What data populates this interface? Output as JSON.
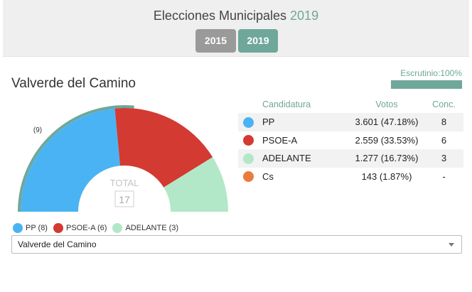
{
  "header": {
    "title_prefix": "Elecciones Municipales",
    "title_year": "2019",
    "years": [
      "2015",
      "2019"
    ]
  },
  "municipality": {
    "name": "Valverde del Camino"
  },
  "escrutinio": {
    "label": "Escrutinio:100%",
    "fraction": 1.0
  },
  "chart": {
    "total_label": "TOTAL",
    "total_value": "17",
    "majority_label": "(9)"
  },
  "chart_data": {
    "type": "pie",
    "shape": "semicircle",
    "total": 17,
    "majority": 9,
    "series": [
      {
        "name": "PP",
        "value": 8,
        "color": "#4ab3f4"
      },
      {
        "name": "PSOE-A",
        "value": 6,
        "color": "#d33a32"
      },
      {
        "name": "ADELANTE",
        "value": 3,
        "color": "#b2e8c8"
      }
    ]
  },
  "legend": [
    {
      "label": "PP (8)",
      "color": "#4ab3f4"
    },
    {
      "label": "PSOE-A (6)",
      "color": "#d33a32"
    },
    {
      "label": "ADELANTE (3)",
      "color": "#b2e8c8"
    }
  ],
  "table": {
    "headers": {
      "party": "Candidatura",
      "votes": "Votos",
      "seats": "Conc."
    },
    "rows": [
      {
        "party": "PP",
        "votes": "3.601 (47.18%)",
        "seats": "8",
        "color": "#4ab3f4"
      },
      {
        "party": "PSOE-A",
        "votes": "2.559 (33.53%)",
        "seats": "6",
        "color": "#d33a32"
      },
      {
        "party": "ADELANTE",
        "votes": "1.277 (16.73%)",
        "seats": "3",
        "color": "#b2e8c8"
      },
      {
        "party": "Cs",
        "votes": "143 (1.87%)",
        "seats": "-",
        "color": "#ea7b3c"
      }
    ]
  },
  "select": {
    "value": "Valverde del Camino"
  },
  "colors": {
    "accent": "#6fa79a",
    "inactive_button": "#9a9a9a"
  }
}
